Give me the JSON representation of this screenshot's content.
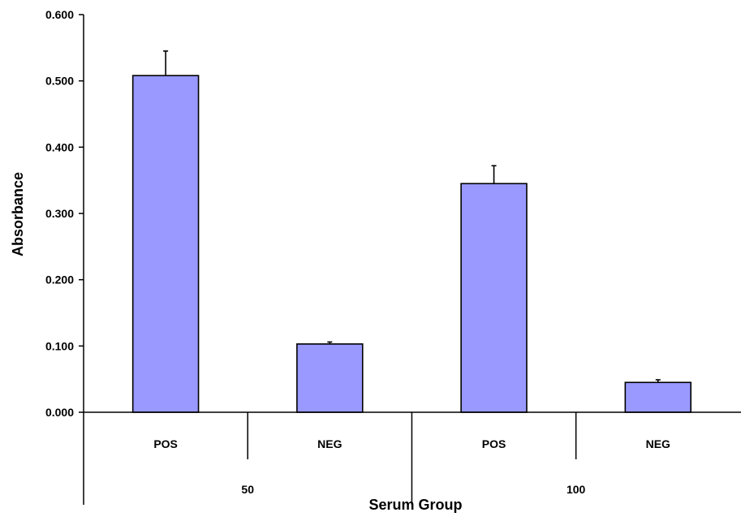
{
  "chart_data": {
    "type": "bar",
    "title": "",
    "xlabel": "Serum Group",
    "ylabel": "Absorbance",
    "ylim": [
      0,
      0.6
    ],
    "yticks": [
      "0.000",
      "0.100",
      "0.200",
      "0.300",
      "0.400",
      "0.500",
      "0.600"
    ],
    "grid": false,
    "legend": "none",
    "bar_color": "#9999ff",
    "groups": [
      {
        "label": "50",
        "categories": [
          "POS",
          "NEG"
        ],
        "values": [
          0.508,
          0.103
        ],
        "errors": [
          0.037,
          0.003
        ]
      },
      {
        "label": "100",
        "categories": [
          "POS",
          "NEG"
        ],
        "values": [
          0.345,
          0.045
        ],
        "errors": [
          0.027,
          0.004
        ]
      }
    ]
  }
}
